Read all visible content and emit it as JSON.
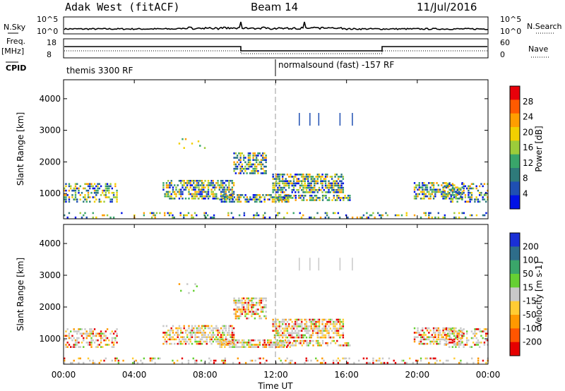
{
  "header": {
    "station": "Adak West (fitACF)",
    "beam": "Beam 14",
    "date": "11/Jul/2016"
  },
  "top_panels": {
    "nsky_label": "N.Sky",
    "nsearch_label": "N.Search",
    "log_hi": "10^5",
    "log_lo": "10^0",
    "freq_label": "Freq.",
    "freq_unit": "[MHz]",
    "freq_ticks": [
      "18",
      "8"
    ],
    "nave_label": "Nave",
    "nave_ticks": [
      "60",
      "0"
    ],
    "cpid_label": "CPID",
    "cpid_segments": [
      {
        "label": "themis 3300 RF",
        "start_hour": 0
      },
      {
        "label": "normalsound (fast) -157 RF",
        "start_hour": 12
      }
    ]
  },
  "chart_data": [
    {
      "type": "heatmap",
      "name": "power",
      "ylabel": "Slant Range [km]",
      "yticks": [
        1000,
        2000,
        3000,
        4000
      ],
      "ylim": [
        200,
        4600
      ],
      "xlim": [
        0,
        24
      ],
      "cbar_label": "Power [dB]",
      "cbar_ticks": [
        "28",
        "24",
        "20",
        "16",
        "12",
        "8",
        "4"
      ],
      "cbar_colors": [
        "#e8000a",
        "#ff5a00",
        "#ff9e00",
        "#f2d000",
        "#9ccc3a",
        "#39a56a",
        "#2e7a7a",
        "#1f4fb2",
        "#0012e6"
      ]
    },
    {
      "type": "heatmap",
      "name": "velocity",
      "ylabel": "Slant Range [km]",
      "yticks": [
        1000,
        2000,
        3000,
        4000
      ],
      "ylim": [
        200,
        4600
      ],
      "xlim": [
        0,
        24
      ],
      "cbar_label": "Velocity [m s-1]",
      "cbar_ticks": [
        "200",
        "100",
        "50",
        "15",
        "-15",
        "-50",
        "-100",
        "-200"
      ],
      "cbar_colors": [
        "#1a2fd6",
        "#2e6d8a",
        "#3aa66a",
        "#66d033",
        "#c8c8c8",
        "#ffcc33",
        "#ff9900",
        "#ff5500",
        "#e60000"
      ]
    }
  ],
  "xaxis": {
    "ticks": [
      "00:00",
      "04:00",
      "08:00",
      "12:00",
      "16:00",
      "20:00",
      "00:00"
    ],
    "label": "Time UT"
  }
}
